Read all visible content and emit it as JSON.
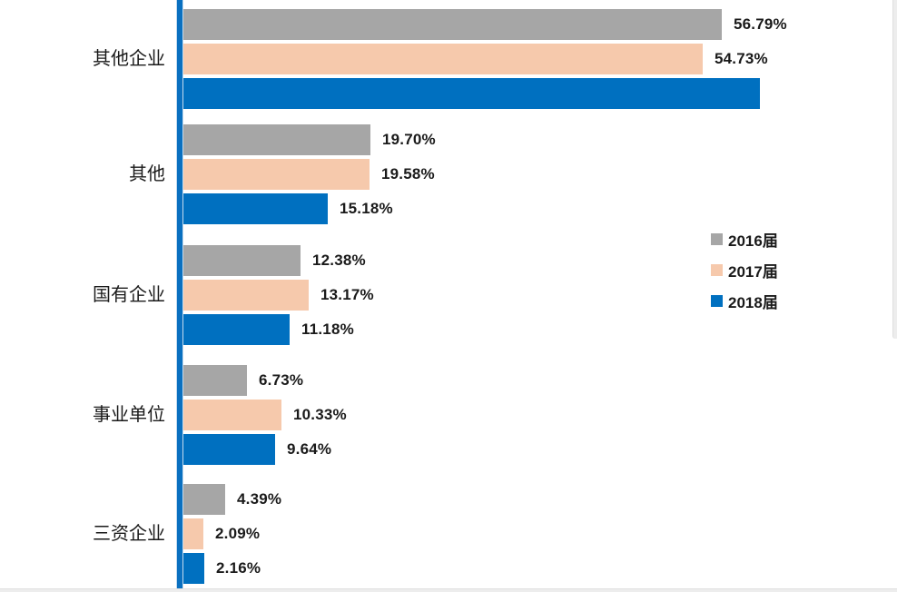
{
  "chart_data": {
    "type": "bar",
    "orientation": "horizontal",
    "title": "",
    "xlabel": "",
    "ylabel": "",
    "xlim": [
      0,
      75
    ],
    "grid": false,
    "categories": [
      "其他企业",
      "其他",
      "国有企业",
      "事业单位",
      "三资企业"
    ],
    "series": [
      {
        "name": "2016届",
        "color": "#A6A6A6",
        "values": [
          56.79,
          19.7,
          12.38,
          6.73,
          4.39
        ],
        "value_labels": [
          "56.79%",
          "19.70%",
          "12.38%",
          "6.73%",
          "4.39%"
        ]
      },
      {
        "name": "2017届",
        "color": "#F6C9AC",
        "values": [
          54.73,
          19.58,
          13.17,
          10.33,
          2.09
        ],
        "value_labels": [
          "54.73%",
          "19.58%",
          "13.17%",
          "10.33%",
          "2.09%"
        ]
      },
      {
        "name": "2018届",
        "color": "#0070C0",
        "values": [
          60.8,
          15.18,
          11.18,
          9.64,
          2.16
        ],
        "value_labels": [
          "",
          "15.18%",
          "11.18%",
          "9.64%",
          "2.16%"
        ],
        "note": "first bar (其他企业) is drawn without a visible data label; 60.8 estimated from bar length"
      }
    ],
    "legend": {
      "position": "middle-right",
      "entries": [
        {
          "label": "2016届",
          "color": "#A6A6A6"
        },
        {
          "label": "2017届",
          "color": "#F6C9AC"
        },
        {
          "label": "2018届",
          "color": "#0070C0"
        }
      ]
    },
    "axis_baseline_color": "#0070C0"
  }
}
